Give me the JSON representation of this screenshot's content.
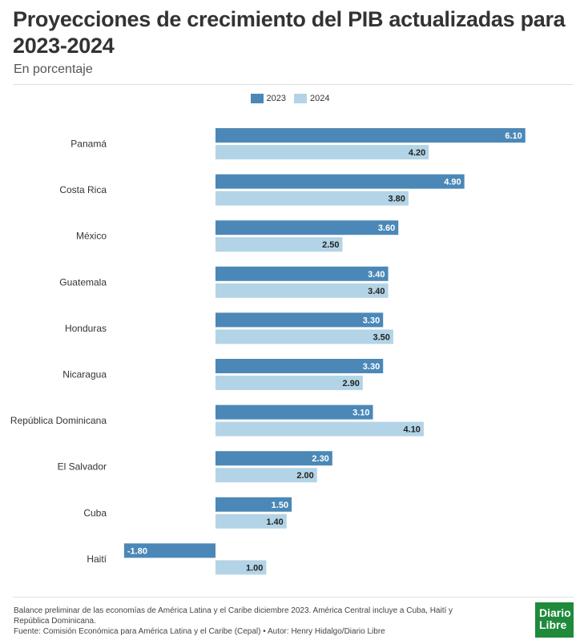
{
  "header": {
    "title": "Proyecciones de crecimiento del PIB actualizadas para 2023-2024",
    "subtitle": "En porcentaje"
  },
  "colors": {
    "series_2023": "#4b88b8",
    "series_2024": "#b3d4e6"
  },
  "chart_data": {
    "type": "bar",
    "orientation": "horizontal",
    "title": "Proyecciones de crecimiento del PIB actualizadas para 2023-2024",
    "subtitle": "En porcentaje",
    "categories": [
      "Panamá",
      "Costa Rica",
      "México",
      "Guatemala",
      "Honduras",
      "Nicaragua",
      "República Dominicana",
      "El Salvador",
      "Cuba",
      "Haití"
    ],
    "series": [
      {
        "name": "2023",
        "values": [
          6.1,
          4.9,
          3.6,
          3.4,
          3.3,
          3.3,
          3.1,
          2.3,
          1.5,
          -1.8
        ]
      },
      {
        "name": "2024",
        "values": [
          4.2,
          3.8,
          2.5,
          3.4,
          3.5,
          2.9,
          4.1,
          2.0,
          1.4,
          1.0
        ]
      }
    ],
    "value_labels_2023": [
      "6.10",
      "4.90",
      "3.60",
      "3.40",
      "3.30",
      "3.30",
      "3.10",
      "2.30",
      "1.50",
      "-1.80"
    ],
    "value_labels_2024": [
      "4.20",
      "3.80",
      "2.50",
      "3.40",
      "3.50",
      "2.90",
      "4.10",
      "2.00",
      "1.40",
      "1.00"
    ],
    "legend_position": "top-center",
    "grid": false
  },
  "footer": {
    "note": "Balance preliminar de las economías de América Latina y el Caribe diciembre 2023. América Central incluye a Cuba, Haití y República Dominicana.",
    "source": "Fuente: Comisión Económica para América Latina y el Caribe (Cepal) • Autor: Henry Hidalgo/Diario Libre",
    "logo_line1": "Diario",
    "logo_line2": "Libre"
  }
}
